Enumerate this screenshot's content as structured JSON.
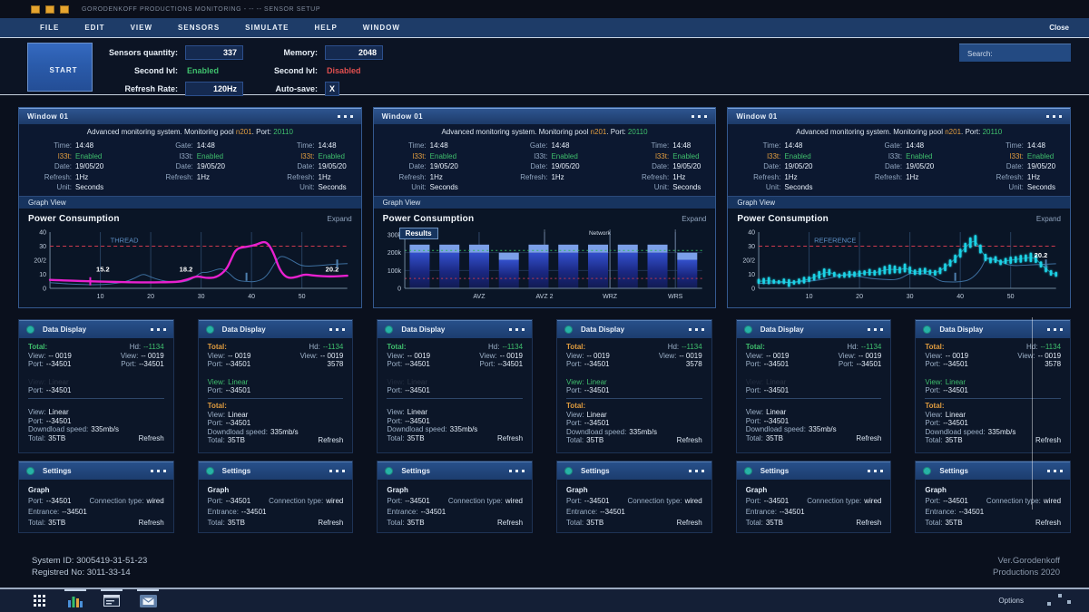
{
  "titlebar": {
    "title": "GORODENKOFF PRODUCTIONS MONITORING - -- -- SENSOR SETUP"
  },
  "menubar": {
    "items": [
      "FILE",
      "EDIT",
      "VIEW",
      "SENSORS",
      "SIMULATE",
      "HELP",
      "WINDOW"
    ],
    "close_label": "Close"
  },
  "toolbar": {
    "start_label": "START",
    "sensors_label": "Sensors quantity:",
    "sensors_value": "337",
    "memory_label": "Memory:",
    "memory_value": "2048",
    "second_lvl_left_label": "Second lvl:",
    "second_lvl_left_value": "Enabled",
    "second_lvl_right_label": "Second lvl:",
    "second_lvl_right_value": "Disabled",
    "refresh_label": "Refresh Rate:",
    "refresh_value": "120Hz",
    "autosave_label": "Auto-save:",
    "autosave_value": "X",
    "search_label": "Search:"
  },
  "window": {
    "title": "Window 01",
    "subtitle": {
      "prefix": "Advanced monitoring system. Monitoring pool ",
      "pool": "n201",
      "mid": ". Port: ",
      "port": "20110"
    },
    "col_a": {
      "l1": "Time:",
      "v1": "14:48",
      "l2": "l33t:",
      "v2": "Enabled",
      "l3": "Date:",
      "v3": "19/05/20",
      "l4": "Refresh:",
      "v4": "1Hz",
      "l5": "Unit:",
      "v5": "Seconds"
    },
    "col_b": {
      "l1": "Gate:",
      "v1": "14:48",
      "l2": "l33t:",
      "v2": "Enabled",
      "l3": "Date:",
      "v3": "19/05/20",
      "l4": "Refresh:",
      "v4": "1Hz"
    },
    "col_c": {
      "l1": "Time:",
      "v1": "14:48",
      "l2": "l33t:",
      "v2": "Enabled",
      "l3": "Date:",
      "v3": "19/05/20",
      "l4": "Refresh:",
      "v4": "1Hz",
      "l5": "Unit:",
      "v5": "Seconds"
    },
    "graph_view": "Graph View",
    "chart_title": "Power Consumption",
    "expand": "Expand",
    "badge": "Results",
    "network": "Network"
  },
  "chart_data": [
    {
      "type": "line",
      "title": "Power Consumption",
      "xlim": [
        0,
        59
      ],
      "ylim": [
        0,
        40
      ],
      "xticks": [
        10,
        20,
        30,
        40,
        50
      ],
      "yticks": [
        {
          "v": 0,
          "label": "0"
        },
        {
          "v": 10,
          "label": "10"
        },
        {
          "v": 20,
          "label": "20/2"
        },
        {
          "v": 30,
          "label": "30"
        },
        {
          "v": 40,
          "label": "40"
        }
      ],
      "threshold": {
        "y": 30,
        "label": "THREAD",
        "label_x": 12,
        "color": "#cf3a4e"
      },
      "series": [
        {
          "name": "secondary",
          "color": "#3d6f9f",
          "width": 1,
          "points": [
            [
              0,
              4
            ],
            [
              3,
              3.2
            ],
            [
              6,
              2.8
            ],
            [
              9,
              2.5
            ],
            [
              12,
              3
            ],
            [
              15,
              4.6
            ],
            [
              17,
              7.5
            ],
            [
              18.5,
              10.5
            ],
            [
              20,
              8
            ],
            [
              22,
              5.6
            ],
            [
              24,
              4.6
            ],
            [
              26,
              4.1
            ],
            [
              28,
              6
            ],
            [
              30,
              11.5
            ],
            [
              31,
              11.2
            ],
            [
              32,
              12
            ],
            [
              34,
              14.5
            ],
            [
              35.5,
              11
            ],
            [
              37,
              5.6
            ],
            [
              39,
              4.8
            ],
            [
              41,
              4.6
            ],
            [
              43,
              8
            ],
            [
              45,
              20.5
            ],
            [
              46,
              23.5
            ],
            [
              48,
              20
            ],
            [
              50,
              15.6
            ],
            [
              53,
              16
            ],
            [
              56,
              17
            ],
            [
              59,
              17.6
            ]
          ]
        },
        {
          "name": "primary",
          "color": "#e820cf",
          "width": 2.4,
          "points": [
            [
              0,
              6
            ],
            [
              4,
              5.4
            ],
            [
              8,
              5
            ],
            [
              12,
              4.6
            ],
            [
              16,
              4.3
            ],
            [
              20,
              4.2
            ],
            [
              24,
              4.4
            ],
            [
              26,
              4.8
            ],
            [
              28,
              7.2
            ],
            [
              29,
              8.5
            ],
            [
              30,
              8.2
            ],
            [
              31,
              7.3
            ],
            [
              33,
              7.6
            ],
            [
              35,
              13
            ],
            [
              36,
              21
            ],
            [
              37,
              28.5
            ],
            [
              39,
              29.5
            ],
            [
              41,
              31
            ],
            [
              42.5,
              33.5
            ],
            [
              43.5,
              31
            ],
            [
              44.5,
              24
            ],
            [
              45.5,
              14
            ],
            [
              46.5,
              9
            ],
            [
              47.5,
              7.2
            ],
            [
              49,
              8
            ],
            [
              50.5,
              10
            ],
            [
              52,
              9.2
            ],
            [
              54,
              8.6
            ],
            [
              56,
              8.4
            ],
            [
              59,
              9
            ]
          ]
        }
      ],
      "point_labels": [
        {
          "x": 10.5,
          "y": 12,
          "text": "15.2"
        },
        {
          "x": 27,
          "y": 12,
          "text": "18.2"
        },
        {
          "x": 56,
          "y": 12,
          "text": "20.2"
        }
      ],
      "ticks": [
        {
          "x": 8,
          "y": 5,
          "color": "#e820cf"
        },
        {
          "x": 39,
          "y": 8.2,
          "color": "#4d7fae"
        },
        {
          "x": 57,
          "y": 17.6,
          "color": "#4d7fae"
        }
      ]
    },
    {
      "type": "bar",
      "title": "Power Consumption",
      "badge": "Results",
      "top_label": "Network",
      "ylim": [
        0,
        300
      ],
      "yticks": [
        {
          "v": 0,
          "label": "0"
        },
        {
          "v": 100,
          "label": "100k"
        },
        {
          "v": 200,
          "label": "200k"
        },
        {
          "v": 300,
          "label": "300k"
        }
      ],
      "values": [
        245,
        245,
        245,
        200,
        245,
        245,
        245,
        245,
        245,
        200
      ],
      "cap_from": [
        200,
        200,
        200,
        160,
        200,
        200,
        200,
        200,
        200,
        160
      ],
      "xlabels": [
        {
          "pos": 0.25,
          "text": "AVZ"
        },
        {
          "pos": 0.47,
          "text": "AVZ 2"
        },
        {
          "pos": 0.69,
          "text": "WRZ"
        },
        {
          "pos": 0.91,
          "text": "WRS"
        }
      ],
      "bright_lines": [
        {
          "pos": 0.47,
          "full": true
        },
        {
          "pos": 0.69,
          "full": true
        },
        {
          "pos": 0.91,
          "full": false
        }
      ],
      "guides": [
        {
          "y": 212,
          "color": "#33b45e"
        },
        {
          "y": 55,
          "color": "#c23a52"
        }
      ],
      "bar_colors": {
        "cap": "#7b9fe8",
        "grad_top": "#3350cc",
        "grad_mid": "#1a2780",
        "grad_bottom": "#111b52"
      }
    },
    {
      "type": "waveform",
      "title": "Power Consumption",
      "xlim": [
        0,
        59
      ],
      "ylim": [
        0,
        40
      ],
      "xticks": [
        10,
        20,
        30,
        40,
        50
      ],
      "yticks": [
        {
          "v": 0,
          "label": "0"
        },
        {
          "v": 10,
          "label": "10"
        },
        {
          "v": 20,
          "label": "20/2"
        },
        {
          "v": 30,
          "label": "30"
        },
        {
          "v": 40,
          "label": "40"
        }
      ],
      "threshold": {
        "y": 30,
        "label": "REFERENCE",
        "label_x": 11,
        "color": "#cf3a4e"
      },
      "wave": {
        "color": "#1fd3e6",
        "points": [
          [
            0,
            5,
            1.8
          ],
          [
            1,
            5.2,
            2.2
          ],
          [
            2,
            5.5,
            2.6
          ],
          [
            3,
            4.8,
            1.6
          ],
          [
            4,
            4.5,
            1.4
          ],
          [
            5,
            5,
            2
          ],
          [
            6,
            3.8,
            2.8
          ],
          [
            7,
            4.2,
            1.6
          ],
          [
            8,
            5,
            2
          ],
          [
            9,
            5.8,
            2.4
          ],
          [
            10,
            6.5,
            2
          ],
          [
            11,
            8,
            2.4
          ],
          [
            12,
            9.5,
            2.8
          ],
          [
            13,
            11,
            3.2
          ],
          [
            14,
            11.5,
            2.4
          ],
          [
            15,
            10,
            1.8
          ],
          [
            16,
            9,
            1.6
          ],
          [
            17,
            9.5,
            2
          ],
          [
            18,
            10,
            2.4
          ],
          [
            19,
            10,
            2
          ],
          [
            20,
            10.5,
            2.2
          ],
          [
            21,
            11,
            1.8
          ],
          [
            22,
            11.5,
            2.4
          ],
          [
            23,
            11,
            2
          ],
          [
            24,
            12,
            2.6
          ],
          [
            25,
            13,
            3
          ],
          [
            26,
            13.5,
            3.4
          ],
          [
            27,
            13.5,
            2.8
          ],
          [
            28,
            13,
            2.4
          ],
          [
            29,
            14.5,
            3.2
          ],
          [
            30,
            13,
            2.6
          ],
          [
            31,
            11.5,
            2
          ],
          [
            32,
            12,
            2.4
          ],
          [
            33,
            12.5,
            2.2
          ],
          [
            34,
            11.5,
            1.8
          ],
          [
            35,
            11,
            2
          ],
          [
            36,
            12.5,
            2.4
          ],
          [
            37,
            15,
            2.8
          ],
          [
            38,
            18,
            2.6
          ],
          [
            39,
            21,
            3
          ],
          [
            40,
            25,
            3.2
          ],
          [
            41,
            29,
            3.4
          ],
          [
            42,
            32.5,
            3.8
          ],
          [
            43,
            34,
            4
          ],
          [
            44,
            28,
            3.2
          ],
          [
            45,
            22,
            2.6
          ],
          [
            46,
            20,
            2.2
          ],
          [
            47,
            20.5,
            2.4
          ],
          [
            48,
            18.5,
            2
          ],
          [
            49,
            19.5,
            2.2
          ],
          [
            50,
            20,
            2.6
          ],
          [
            51,
            20.5,
            2.4
          ],
          [
            52,
            21,
            2.8
          ],
          [
            53,
            21.5,
            2.6
          ],
          [
            54,
            22,
            3.4
          ],
          [
            55,
            21,
            3
          ],
          [
            56,
            17,
            2.2
          ],
          [
            57,
            14,
            2.6
          ],
          [
            58,
            11,
            2
          ],
          [
            59,
            10,
            1.8
          ]
        ]
      },
      "line": {
        "color": "#3d6f9f",
        "width": 1,
        "points": [
          [
            0,
            3.5
          ],
          [
            5,
            4
          ],
          [
            10,
            5
          ],
          [
            14,
            7
          ],
          [
            17,
            10
          ],
          [
            20,
            8.5
          ],
          [
            22,
            7
          ],
          [
            26,
            6
          ],
          [
            28,
            6.5
          ],
          [
            30,
            11
          ],
          [
            32,
            10.5
          ],
          [
            34,
            10
          ],
          [
            36,
            4.8
          ],
          [
            38,
            4.5
          ],
          [
            40,
            4.6
          ],
          [
            42,
            6
          ],
          [
            44,
            13
          ],
          [
            45,
            21
          ],
          [
            46,
            22
          ],
          [
            48,
            19
          ],
          [
            50,
            16
          ],
          [
            53,
            16.5
          ],
          [
            56,
            17
          ],
          [
            59,
            17.5
          ]
        ]
      },
      "point_labels": [
        {
          "x": 56,
          "y": 22,
          "text": "20.2"
        }
      ],
      "ticks": [
        {
          "x": 39,
          "y": 8.2,
          "color": "#4d7fae"
        },
        {
          "x": 57,
          "y": 17.6,
          "color": "#4d7fae"
        }
      ]
    }
  ],
  "data_display": {
    "header": "Data Display",
    "a": {
      "total": "Total:",
      "hd_label": "Hd:",
      "hd_value": "--1134",
      "view_l": "View:",
      "view_lv": "-- 0019",
      "view_r": "View:",
      "view_rv": "-- 0019",
      "port_l": "Port:",
      "port_lv": "--34501",
      "port_r": "Port:",
      "port_rv": "--34501",
      "ghost_label": "View:",
      "ghost_value": "Linear",
      "port2_label": "Port:",
      "port2_value": "--34501",
      "view3_label": "View:",
      "view3_value": "Linear",
      "port3_label": "Port:",
      "port3_value": "--34501",
      "speed_label": "Downdload speed:",
      "speed_value": "335mb/s",
      "total2_label": "Total:",
      "total2_value": "35TB",
      "refresh": "Refresh"
    },
    "b": {
      "total": "Total:",
      "hd_label": "Hd:",
      "hd_value": "--1134",
      "view_l": "View:",
      "view_lv": "-- 0019",
      "view_r": "View:",
      "view_rv": "-- 0019",
      "port_l": "Port:",
      "port_lv": "--34501",
      "num_value": "3578",
      "mid_view_label": "View:",
      "mid_view_value": "Linear",
      "mid_port_label": "Port:",
      "mid_port_value": "--34501",
      "bottom_title": "Total:",
      "view3_label": "View:",
      "view3_value": "Linear",
      "port3_label": "Port:",
      "port3_value": "--34501",
      "speed_label": "Downdload speed:",
      "speed_value": "335mb/s",
      "total2_label": "Total:",
      "total2_value": "35TB",
      "refresh": "Refresh"
    }
  },
  "settings": {
    "header": "Settings",
    "graph_label": "Graph",
    "port_label": "Port:",
    "port_value": "--34501",
    "conn_label": "Connection type:",
    "conn_value": "wired",
    "entrance_label": "Entrance:",
    "entrance_value": "--34501",
    "total_label": "Total:",
    "total_value": "35TB",
    "refresh": "Refresh"
  },
  "footer": {
    "system_id": "System ID: 3005419-31-51-23",
    "registred": "Registred No: 3011-33-14",
    "version_line1": "Ver.Gorodenkoff",
    "version_line2": "Productions 2020"
  },
  "taskbar": {
    "options_label": "Options"
  },
  "colors": {
    "accent_blue": "#2e5590",
    "green": "#3fbf6d",
    "red": "#e04f4f",
    "orange": "#e09c3f",
    "magenta": "#e820cf",
    "cyan": "#1fd3e6",
    "teal": "#27b2a6"
  }
}
